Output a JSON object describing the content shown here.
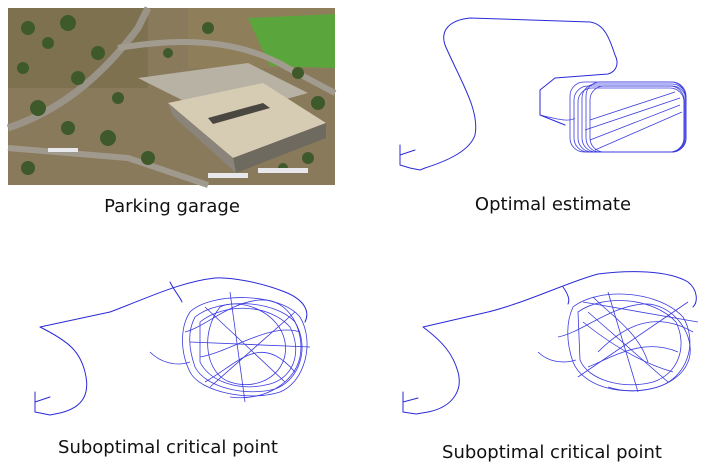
{
  "panels": [
    {
      "id": "photo",
      "caption": "Parking garage"
    },
    {
      "id": "optimal",
      "caption": "Optimal estimate"
    },
    {
      "id": "subopt1",
      "caption": "Suboptimal critical point"
    },
    {
      "id": "subopt2",
      "caption": "Suboptimal critical point"
    }
  ],
  "colors": {
    "trajectory": "#2a2ad8"
  }
}
